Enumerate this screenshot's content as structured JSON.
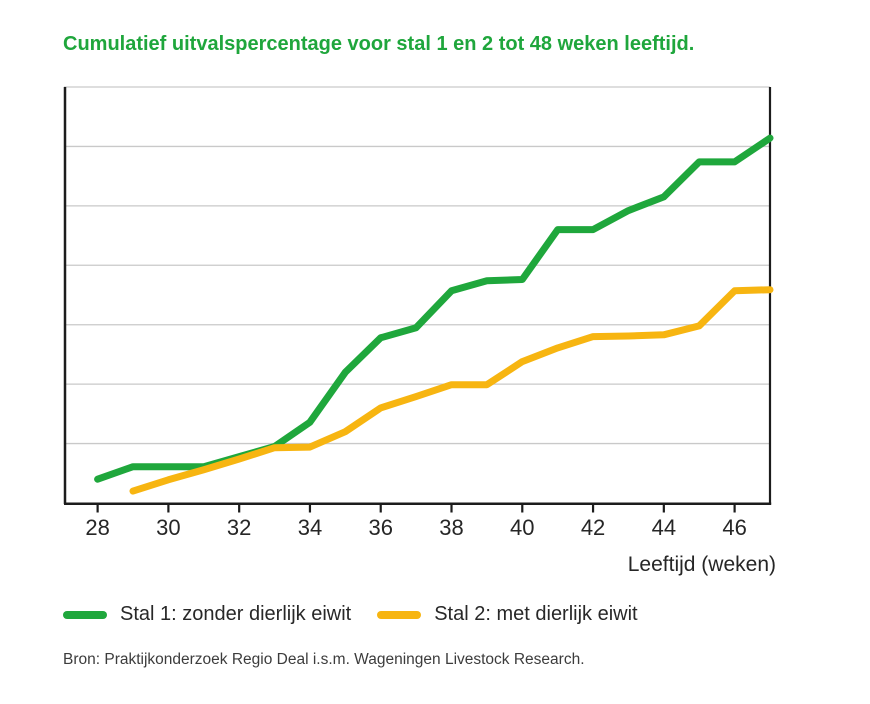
{
  "chart_data": {
    "type": "line",
    "title": "Cumulatief uitvalspercentage voor stal 1 en 2 tot 48 weken leeftijd.",
    "xlabel": "Leeftijd (weken)",
    "ylabel": "",
    "source": "Bron: Praktijkonderzoek Regio Deal i.s.m. Wageningen Livestock Research.",
    "xlim": [
      27.05,
      47
    ],
    "ylim": [
      0,
      7
    ],
    "grid": "horizontal",
    "grid_step": 1,
    "y_axis_labels_visible": false,
    "x_ticks": [
      28,
      30,
      32,
      34,
      36,
      38,
      40,
      42,
      44,
      46
    ],
    "legend_position": "below",
    "colors": {
      "grid": "#c9c9c9",
      "axis": "#1c1c1c",
      "tick_text": "#262626",
      "title_text": "#1fa63c",
      "source_text": "#3c3c3c"
    },
    "series": [
      {
        "name": "Stal 1: zonder dierlijk eiwit",
        "id": "stal1",
        "color": "#1fa73c",
        "x": [
          28,
          29,
          30,
          31,
          32,
          33,
          34,
          35,
          36,
          37,
          38,
          39,
          40,
          41,
          42,
          43,
          44,
          45,
          46,
          47
        ],
        "values": [
          0.4,
          0.61,
          0.61,
          0.61,
          0.78,
          0.95,
          1.36,
          2.2,
          2.78,
          2.95,
          3.57,
          3.74,
          3.76,
          4.6,
          4.6,
          4.92,
          5.15,
          5.74,
          5.74,
          6.14
        ]
      },
      {
        "name": "Stal 2: met dierlijk eiwit",
        "id": "stal2",
        "color": "#f7b511",
        "x": [
          29,
          30,
          31,
          32,
          33,
          34,
          35,
          36,
          37,
          38,
          39,
          40,
          41,
          42,
          43,
          44,
          45,
          46,
          47
        ],
        "values": [
          0.2,
          0.39,
          0.56,
          0.74,
          0.93,
          0.94,
          1.2,
          1.6,
          1.79,
          1.99,
          1.99,
          2.38,
          2.61,
          2.8,
          2.81,
          2.83,
          2.98,
          3.57,
          3.59
        ]
      }
    ]
  }
}
